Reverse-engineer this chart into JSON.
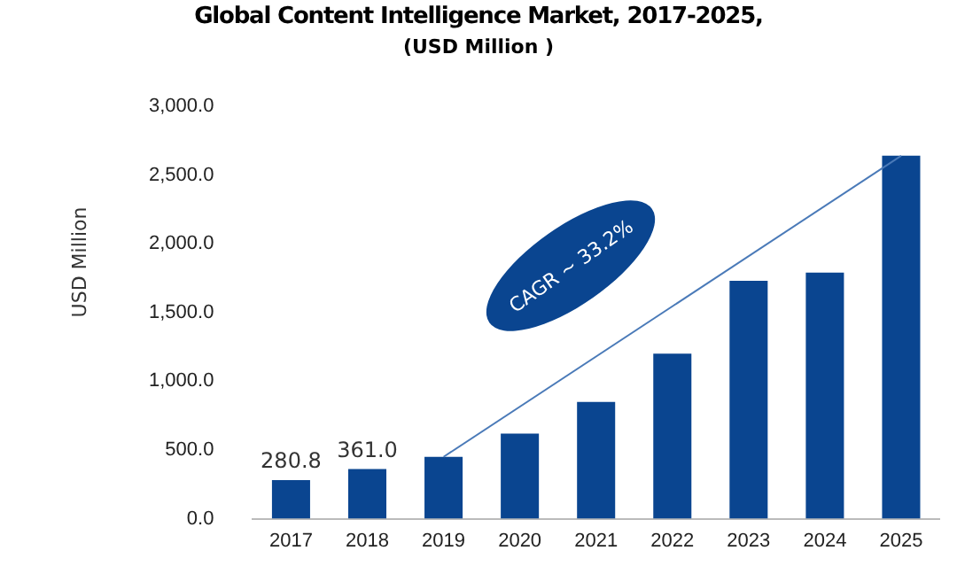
{
  "chart_data": {
    "type": "bar",
    "title": "Global Content Intelligence Market, 2017-2025,",
    "subtitle": "(USD Million )",
    "ylabel": "USD Million",
    "categories": [
      "2017",
      "2018",
      "2019",
      "2020",
      "2021",
      "2022",
      "2023",
      "2024",
      "2025"
    ],
    "series": [
      {
        "color": "#0a4590",
        "values": [
          280.8,
          361.0,
          450,
          620,
          850,
          1200,
          1730,
          1790,
          2640
        ],
        "value_labels": [
          "280.8",
          "361.0",
          null,
          null,
          null,
          null,
          null,
          null,
          null
        ]
      },
      {
        "type": "line",
        "color": "#4a7ab8",
        "values": [
          null,
          null,
          450,
          null,
          null,
          null,
          null,
          null,
          2640
        ]
      }
    ],
    "ylim": [
      0,
      3000
    ],
    "yticks": [
      {
        "value": 0,
        "label": "0.0"
      },
      {
        "value": 500,
        "label": "500.0"
      },
      {
        "value": 1000,
        "label": "1,000.0"
      },
      {
        "value": 1500,
        "label": "1,500.0"
      },
      {
        "value": 2000,
        "label": "2,000.0"
      },
      {
        "value": 2500,
        "label": "2,500.0"
      },
      {
        "value": 3000,
        "label": "3,000.0"
      }
    ],
    "grid": false,
    "legend": false,
    "annotations": [
      "CAGR ~ 33.2%"
    ]
  }
}
